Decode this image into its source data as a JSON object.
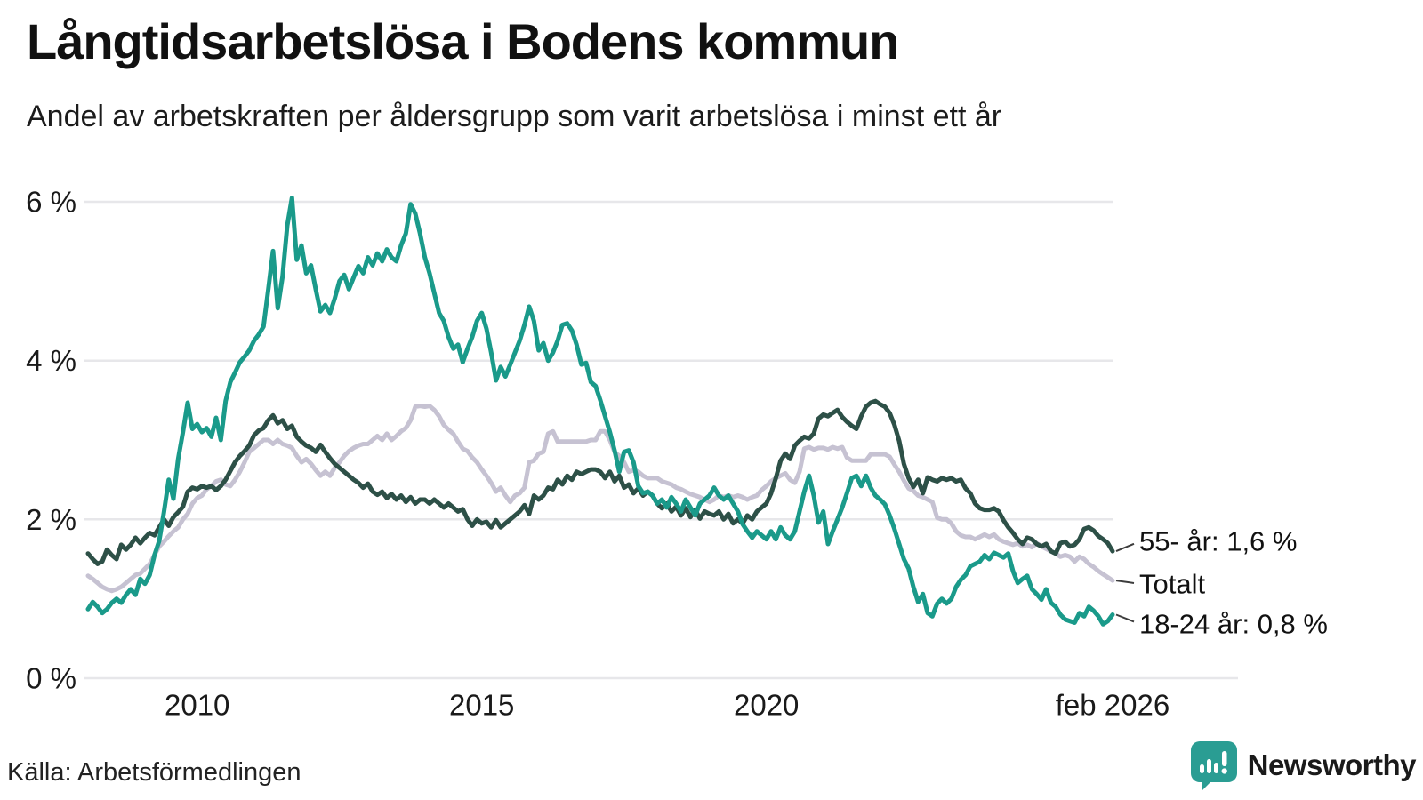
{
  "header": {
    "title": "Långtidsarbetslösa i Bodens kommun",
    "subtitle": "Andel av arbetskraften per åldersgrupp som varit arbetslösa i minst ett år"
  },
  "footer": {
    "source": "Källa: Arbetsförmedlingen",
    "brand": "Newsworthy",
    "brand_icon": "newsworthy-speech-bubble-bar-chart-icon"
  },
  "colors": {
    "youth_teal": "#1a9a8a",
    "senior_dark_green": "#2d5047",
    "total_gray": "#c6c2d2",
    "brand_teal": "#2a9d93",
    "gridline": "#e7e7ea",
    "text": "#1a1a1a"
  },
  "chart_data": {
    "type": "line",
    "title": "Långtidsarbetslösa i Bodens kommun",
    "subtitle": "Andel av arbetskraften per åldersgrupp som varit arbetslösa i minst ett år",
    "unit": "%",
    "frequency": "monthly",
    "x_start": "2008-02",
    "x_end": "2026-02",
    "ylim": [
      0,
      6
    ],
    "grid": "horizontal",
    "legend_position": "right-end-labels",
    "y_ticks": [
      {
        "value": 0,
        "label": "0 %"
      },
      {
        "value": 2,
        "label": "2 %"
      },
      {
        "value": 4,
        "label": "4 %"
      },
      {
        "value": 6,
        "label": "6 %"
      }
    ],
    "x_ticks": [
      {
        "index": 23,
        "label": "2010"
      },
      {
        "index": 83,
        "label": "2015"
      },
      {
        "index": 143,
        "label": "2020"
      },
      {
        "index": 216,
        "label": "feb 2026"
      }
    ],
    "series": [
      {
        "name": "Totalt",
        "key": "totalt",
        "end_label": "Totalt",
        "end_value": 1.23,
        "color": "#c6c2d2",
        "values": [
          1.29,
          1.25,
          1.2,
          1.15,
          1.12,
          1.1,
          1.12,
          1.15,
          1.2,
          1.25,
          1.3,
          1.32,
          1.38,
          1.44,
          1.55,
          1.66,
          1.72,
          1.79,
          1.85,
          1.9,
          2.0,
          2.07,
          2.2,
          2.27,
          2.3,
          2.38,
          2.42,
          2.48,
          2.5,
          2.44,
          2.42,
          2.5,
          2.6,
          2.72,
          2.85,
          2.9,
          2.95,
          3.0,
          3.0,
          2.95,
          3.0,
          2.95,
          2.93,
          2.9,
          2.8,
          2.72,
          2.76,
          2.7,
          2.62,
          2.55,
          2.6,
          2.55,
          2.65,
          2.72,
          2.8,
          2.86,
          2.9,
          2.93,
          2.95,
          2.95,
          3.0,
          3.05,
          3.0,
          3.08,
          3.0,
          3.05,
          3.11,
          3.15,
          3.25,
          3.42,
          3.43,
          3.42,
          3.43,
          3.38,
          3.3,
          3.19,
          3.13,
          3.08,
          2.98,
          2.89,
          2.86,
          2.78,
          2.72,
          2.63,
          2.55,
          2.46,
          2.35,
          2.4,
          2.3,
          2.22,
          2.3,
          2.33,
          2.4,
          2.72,
          2.74,
          2.83,
          2.85,
          3.08,
          3.11,
          2.98,
          2.98,
          2.98,
          2.98,
          2.98,
          2.98,
          2.98,
          3.0,
          3.0,
          3.11,
          3.11,
          3.0,
          2.85,
          2.8,
          2.72,
          2.6,
          2.62,
          2.6,
          2.55,
          2.52,
          2.52,
          2.52,
          2.48,
          2.46,
          2.44,
          2.4,
          2.38,
          2.35,
          2.32,
          2.3,
          2.28,
          2.25,
          2.22,
          2.25,
          2.3,
          2.28,
          2.3,
          2.28,
          2.3,
          2.28,
          2.25,
          2.28,
          2.3,
          2.37,
          2.42,
          2.48,
          2.52,
          2.55,
          2.58,
          2.5,
          2.46,
          2.6,
          2.89,
          2.91,
          2.88,
          2.9,
          2.9,
          2.88,
          2.91,
          2.89,
          2.91,
          2.78,
          2.74,
          2.74,
          2.74,
          2.74,
          2.82,
          2.82,
          2.82,
          2.82,
          2.79,
          2.69,
          2.6,
          2.49,
          2.39,
          2.36,
          2.3,
          2.28,
          2.25,
          2.22,
          2.02,
          2.0,
          2.0,
          1.95,
          1.85,
          1.8,
          1.78,
          1.78,
          1.75,
          1.78,
          1.81,
          1.78,
          1.81,
          1.75,
          1.72,
          1.7,
          1.68,
          1.7,
          1.66,
          1.68,
          1.65,
          1.7,
          1.66,
          1.63,
          1.6,
          1.57,
          1.53,
          1.55,
          1.53,
          1.47,
          1.53,
          1.5,
          1.44,
          1.4,
          1.35,
          1.31,
          1.27,
          1.23
        ]
      },
      {
        "name": "55- år",
        "key": "55-ar",
        "end_label": "55- år: 1,6 %",
        "end_value": 1.6,
        "color": "#2d5047",
        "values": [
          1.57,
          1.5,
          1.44,
          1.47,
          1.62,
          1.55,
          1.5,
          1.68,
          1.62,
          1.68,
          1.77,
          1.7,
          1.77,
          1.83,
          1.8,
          1.9,
          2.0,
          1.92,
          2.03,
          2.09,
          2.16,
          2.35,
          2.4,
          2.38,
          2.42,
          2.4,
          2.42,
          2.37,
          2.42,
          2.5,
          2.61,
          2.72,
          2.8,
          2.86,
          2.93,
          3.06,
          3.12,
          3.15,
          3.25,
          3.31,
          3.21,
          3.25,
          3.14,
          3.18,
          3.04,
          2.98,
          2.93,
          2.9,
          2.85,
          2.94,
          2.85,
          2.77,
          2.7,
          2.65,
          2.6,
          2.55,
          2.5,
          2.46,
          2.4,
          2.45,
          2.35,
          2.31,
          2.35,
          2.27,
          2.32,
          2.25,
          2.3,
          2.22,
          2.28,
          2.2,
          2.25,
          2.25,
          2.2,
          2.25,
          2.2,
          2.15,
          2.2,
          2.15,
          2.1,
          2.13,
          2.0,
          1.92,
          2.0,
          1.95,
          1.97,
          1.9,
          1.99,
          1.9,
          1.95,
          2.0,
          2.05,
          2.1,
          2.18,
          2.07,
          2.3,
          2.25,
          2.3,
          2.4,
          2.38,
          2.5,
          2.44,
          2.55,
          2.5,
          2.6,
          2.57,
          2.6,
          2.63,
          2.63,
          2.6,
          2.52,
          2.6,
          2.48,
          2.55,
          2.4,
          2.44,
          2.33,
          2.39,
          2.3,
          2.35,
          2.3,
          2.2,
          2.14,
          2.2,
          2.1,
          2.16,
          2.05,
          2.14,
          2.03,
          2.12,
          2.01,
          2.1,
          2.07,
          2.05,
          2.1,
          2.0,
          2.07,
          1.95,
          2.0,
          1.95,
          2.05,
          2.0,
          2.1,
          2.15,
          2.2,
          2.33,
          2.52,
          2.74,
          2.83,
          2.76,
          2.93,
          2.99,
          3.04,
          3.02,
          3.08,
          3.27,
          3.32,
          3.3,
          3.34,
          3.38,
          3.29,
          3.23,
          3.18,
          3.14,
          3.3,
          3.42,
          3.47,
          3.49,
          3.45,
          3.42,
          3.34,
          3.19,
          2.99,
          2.7,
          2.52,
          2.41,
          2.5,
          2.33,
          2.53,
          2.5,
          2.48,
          2.52,
          2.5,
          2.52,
          2.48,
          2.5,
          2.39,
          2.33,
          2.2,
          2.14,
          2.12,
          2.12,
          2.14,
          2.1,
          1.99,
          1.9,
          1.83,
          1.75,
          1.69,
          1.77,
          1.75,
          1.69,
          1.66,
          1.69,
          1.6,
          1.57,
          1.7,
          1.72,
          1.66,
          1.68,
          1.75,
          1.88,
          1.9,
          1.86,
          1.79,
          1.75,
          1.7,
          1.6
        ]
      },
      {
        "name": "18-24 år",
        "key": "18-24-ar",
        "end_label": "18-24 år: 0,8 %",
        "end_value": 0.8,
        "color": "#1a9a8a",
        "values": [
          0.87,
          0.96,
          0.9,
          0.82,
          0.87,
          0.95,
          1.0,
          0.95,
          1.05,
          1.12,
          1.05,
          1.25,
          1.19,
          1.3,
          1.55,
          1.73,
          2.09,
          2.5,
          2.26,
          2.76,
          3.1,
          3.47,
          3.14,
          3.2,
          3.1,
          3.15,
          3.04,
          3.28,
          3.0,
          3.49,
          3.73,
          3.85,
          3.98,
          4.05,
          4.13,
          4.25,
          4.33,
          4.43,
          4.9,
          5.38,
          4.66,
          5.06,
          5.7,
          6.05,
          5.27,
          5.45,
          5.1,
          5.2,
          4.9,
          4.62,
          4.7,
          4.6,
          4.78,
          5.0,
          5.08,
          4.9,
          5.05,
          5.19,
          5.1,
          5.3,
          5.2,
          5.35,
          5.25,
          5.4,
          5.3,
          5.25,
          5.45,
          5.6,
          5.97,
          5.85,
          5.6,
          5.3,
          5.1,
          4.85,
          4.6,
          4.5,
          4.3,
          4.15,
          4.2,
          3.98,
          4.15,
          4.3,
          4.5,
          4.6,
          4.4,
          4.1,
          3.75,
          3.92,
          3.8,
          3.95,
          4.1,
          4.25,
          4.45,
          4.68,
          4.5,
          4.13,
          4.22,
          4.0,
          4.1,
          4.25,
          4.45,
          4.47,
          4.38,
          4.2,
          3.95,
          3.97,
          3.73,
          3.68,
          3.5,
          3.3,
          3.1,
          2.87,
          2.6,
          2.85,
          2.87,
          2.72,
          2.42,
          2.33,
          2.35,
          2.3,
          2.2,
          2.25,
          2.15,
          2.28,
          2.2,
          2.1,
          2.25,
          2.15,
          2.05,
          2.2,
          2.25,
          2.3,
          2.4,
          2.3,
          2.25,
          2.3,
          2.2,
          2.1,
          1.94,
          1.85,
          1.77,
          1.85,
          1.8,
          1.75,
          1.85,
          1.75,
          1.9,
          1.8,
          1.75,
          1.85,
          2.1,
          2.35,
          2.55,
          2.3,
          1.96,
          2.1,
          1.69,
          1.85,
          2.0,
          2.15,
          2.33,
          2.52,
          2.55,
          2.42,
          2.55,
          2.4,
          2.3,
          2.25,
          2.19,
          2.05,
          1.88,
          1.69,
          1.5,
          1.38,
          1.15,
          0.96,
          1.06,
          0.82,
          0.78,
          0.94,
          1.0,
          0.94,
          1.0,
          1.15,
          1.24,
          1.3,
          1.41,
          1.44,
          1.47,
          1.55,
          1.5,
          1.58,
          1.55,
          1.52,
          1.57,
          1.35,
          1.2,
          1.25,
          1.29,
          1.12,
          1.06,
          0.99,
          1.12,
          0.95,
          0.9,
          0.8,
          0.74,
          0.72,
          0.7,
          0.82,
          0.78,
          0.9,
          0.85,
          0.78,
          0.68,
          0.72,
          0.8
        ]
      }
    ]
  }
}
